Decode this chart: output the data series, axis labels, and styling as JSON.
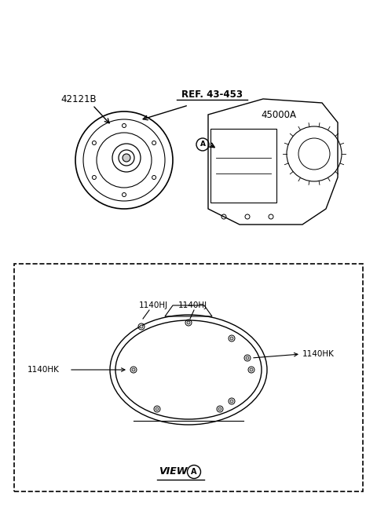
{
  "bg_color": "#ffffff",
  "line_color": "#000000",
  "gray_color": "#888888",
  "label_42121B": "42121B",
  "label_ref": "REF. 43-453",
  "label_45000A": "45000A",
  "label_view_a": "VIEW",
  "label_1140HJ_1": "1140HJ",
  "label_1140HJ_2": "1140HJ",
  "label_1140HK_left": "1140HK",
  "label_1140HK_right": "1140HK",
  "circle_A_label": "A",
  "view_circle_label": "A"
}
